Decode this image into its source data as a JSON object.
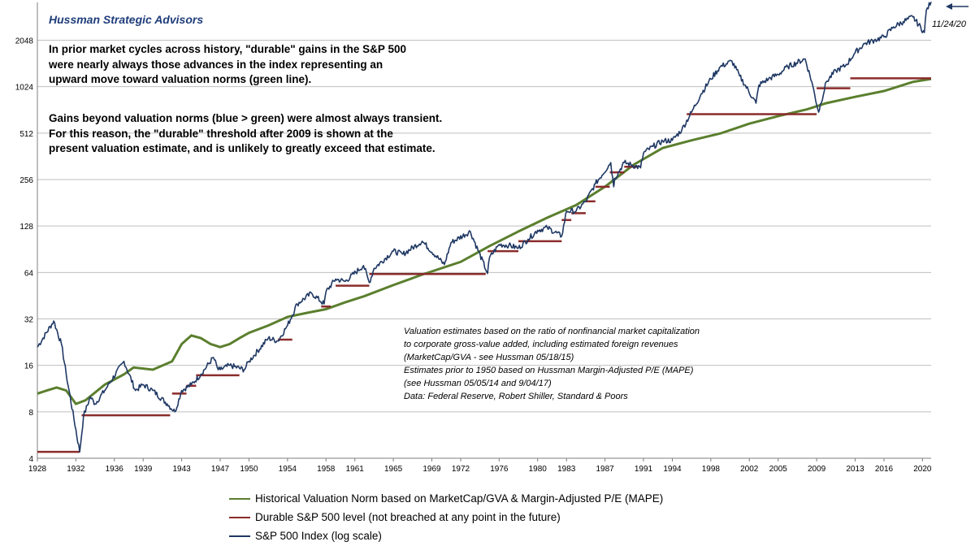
{
  "header": {
    "title": "Hussman Strategic Advisors"
  },
  "callout": {
    "paragraph1": [
      "In prior market cycles across history, \"durable\" gains in the S&P 500",
      "were nearly always those advances in the index representing an",
      "upward move toward valuation norms (green line)."
    ],
    "paragraph2": [
      "Gains beyond valuation norms (blue > green) were almost always transient.",
      "For this reason, the \"durable\" threshold after 2009 is shown at the",
      "present valuation estimate, and is unlikely to greatly exceed that estimate."
    ]
  },
  "notes": [
    "Valuation estimates based on the ratio of nonfinancial  market capitalization",
    "to corporate gross-value added, including estimated foreign revenues",
    "(MarketCap/GVA  - see Hussman 05/18/15)",
    "Estimates prior to 1950 based on Hussman Margin-Adjusted P/E (MAPE)",
    "(see Hussman 05/05/14 and 9/04/17)",
    "Data: Federal Reserve, Robert Shiller, Standard  & Poors"
  ],
  "date_annotation": "11/24/20",
  "colors": {
    "norm": "#5b7f2e",
    "durable": "#8b2c2c",
    "index": "#1f3864",
    "grid": "#bfbfbf",
    "title": "#1f3d7a"
  },
  "chart_data": {
    "type": "line",
    "title": "",
    "xlabel": "",
    "ylabel": "",
    "y_scale": "log2",
    "ylim": [
      4,
      3600
    ],
    "xlim": [
      1928,
      2020.9
    ],
    "y_ticks": [
      "4",
      "8",
      "16",
      "32",
      "64",
      "128",
      "256",
      "512",
      "1024",
      "2048"
    ],
    "x_ticks": [
      "1928",
      "1932",
      "1936",
      "1939",
      "1943",
      "1947",
      "1950",
      "1954",
      "1958",
      "1961",
      "1965",
      "1969",
      "1972",
      "1976",
      "1980",
      "1983",
      "1987",
      "1991",
      "1994",
      "1998",
      "2002",
      "2005",
      "2009",
      "2013",
      "2016",
      "2020"
    ],
    "grid": true,
    "legend": "bottom",
    "series": [
      {
        "name": "Historical Valuation Norm based on MarketCap/GVA & Margin-Adjusted P/E (MAPE)",
        "x": [
          1928,
          1929,
          1930,
          1931,
          1932,
          1933,
          1935,
          1937,
          1938,
          1940,
          1942,
          1943,
          1944,
          1945,
          1946,
          1947,
          1948,
          1949,
          1950,
          1952,
          1954,
          1956,
          1958,
          1960,
          1962,
          1965,
          1968,
          1972,
          1975,
          1978,
          1981,
          1984,
          1987,
          1990,
          1993,
          1996,
          1999,
          2002,
          2005,
          2008,
          2010,
          2013,
          2016,
          2019,
          2020.9
        ],
        "y": [
          10.5,
          11,
          11.5,
          11,
          9,
          9.5,
          12,
          14,
          15.5,
          15,
          17,
          22,
          25,
          24,
          22,
          21,
          22,
          24,
          26,
          29,
          33,
          35,
          37,
          41,
          45,
          53,
          62,
          75,
          95,
          118,
          145,
          175,
          230,
          320,
          410,
          460,
          510,
          590,
          660,
          730,
          800,
          880,
          960,
          1100,
          1150
        ]
      },
      {
        "name": "Durable S&P 500 level (not breached at any point in the future)",
        "segments": [
          {
            "x": [
              1928,
              1932.4
            ],
            "y": 4.4
          },
          {
            "x": [
              1932.6,
              1941.8
            ],
            "y": 7.6
          },
          {
            "x": [
              1942,
              1943.5
            ],
            "y": 10.5
          },
          {
            "x": [
              1943.5,
              1944.5
            ],
            "y": 11.8
          },
          {
            "x": [
              1944.5,
              1949
            ],
            "y": 13.8
          },
          {
            "x": [
              1953,
              1954.5
            ],
            "y": 23.5
          },
          {
            "x": [
              1957.5,
              1958.5
            ],
            "y": 38.5
          },
          {
            "x": [
              1959,
              1962.5
            ],
            "y": 52.5
          },
          {
            "x": [
              1962.5,
              1974.6
            ],
            "y": 62.5
          },
          {
            "x": [
              1974.8,
              1978
            ],
            "y": 88
          },
          {
            "x": [
              1978,
              1982.5
            ],
            "y": 102
          },
          {
            "x": [
              1982.5,
              1983.5
            ],
            "y": 140
          },
          {
            "x": [
              1983.5,
              1985
            ],
            "y": 155
          },
          {
            "x": [
              1985,
              1986
            ],
            "y": 185
          },
          {
            "x": [
              1986,
              1987.5
            ],
            "y": 230
          },
          {
            "x": [
              1987.5,
              1989
            ],
            "y": 285
          },
          {
            "x": [
              1989,
              1990.5
            ],
            "y": 310
          },
          {
            "x": [
              1995.5,
              2009
            ],
            "y": 680
          },
          {
            "x": [
              2009,
              2012.5
            ],
            "y": 1000
          },
          {
            "x": [
              2012.5,
              2020.9
            ],
            "y": 1160
          }
        ]
      },
      {
        "name": "S&P 500 Index (log scale)",
        "x": [
          1928,
          1929.7,
          1930.5,
          1931,
          1932.4,
          1932.8,
          1933.5,
          1934,
          1935,
          1937,
          1938.2,
          1939,
          1940,
          1941.5,
          1942.3,
          1943,
          1944,
          1945,
          1946.3,
          1946.8,
          1947,
          1948,
          1949.5,
          1950,
          1952,
          1953,
          1954,
          1955,
          1956.5,
          1957.8,
          1958,
          1959,
          1960,
          1961.9,
          1962.5,
          1963,
          1965,
          1966,
          1968,
          1970.3,
          1971,
          1973,
          1974.8,
          1975,
          1976,
          1977,
          1978,
          1979,
          1980,
          1981,
          1982.5,
          1983,
          1984,
          1985,
          1986,
          1987.6,
          1987.9,
          1988,
          1989,
          1990.7,
          1991,
          1992,
          1993,
          1994,
          1995,
          1996,
          1997,
          1998,
          1999,
          2000.2,
          2001,
          2002.7,
          2003,
          2004,
          2005,
          2006,
          2007.8,
          2008.5,
          2009.2,
          2010,
          2011,
          2012,
          2013,
          2014,
          2015,
          2016,
          2017,
          2018,
          2019,
          2020.2,
          2020.4,
          2020.9
        ],
        "y": [
          21,
          31,
          22,
          14,
          4.4,
          7.5,
          10,
          9,
          11,
          17,
          11,
          12,
          11,
          9,
          8,
          11,
          12,
          14,
          18,
          15,
          15,
          16,
          15,
          17,
          24,
          23,
          29,
          40,
          47,
          40,
          48,
          58,
          56,
          71,
          55,
          68,
          88,
          84,
          102,
          72,
          100,
          118,
          63,
          80,
          97,
          96,
          92,
          105,
          120,
          125,
          110,
          160,
          160,
          185,
          240,
          330,
          230,
          260,
          330,
          305,
          380,
          420,
          455,
          460,
          540,
          700,
          920,
          1150,
          1380,
          1500,
          1200,
          800,
          1050,
          1150,
          1230,
          1380,
          1550,
          1100,
          700,
          1100,
          1300,
          1400,
          1700,
          1950,
          2050,
          2150,
          2500,
          2700,
          2900,
          2300,
          3200,
          3630
        ]
      }
    ]
  },
  "legend": [
    {
      "label": "Historical Valuation Norm based on MarketCap/GVA & Margin-Adjusted P/E (MAPE)",
      "color": "#5b7f2e"
    },
    {
      "label": "Durable S&P 500 level (not breached at any point in the future)",
      "color": "#8b2c2c"
    },
    {
      "label": "S&P 500 Index (log scale)",
      "color": "#1f3864"
    }
  ]
}
